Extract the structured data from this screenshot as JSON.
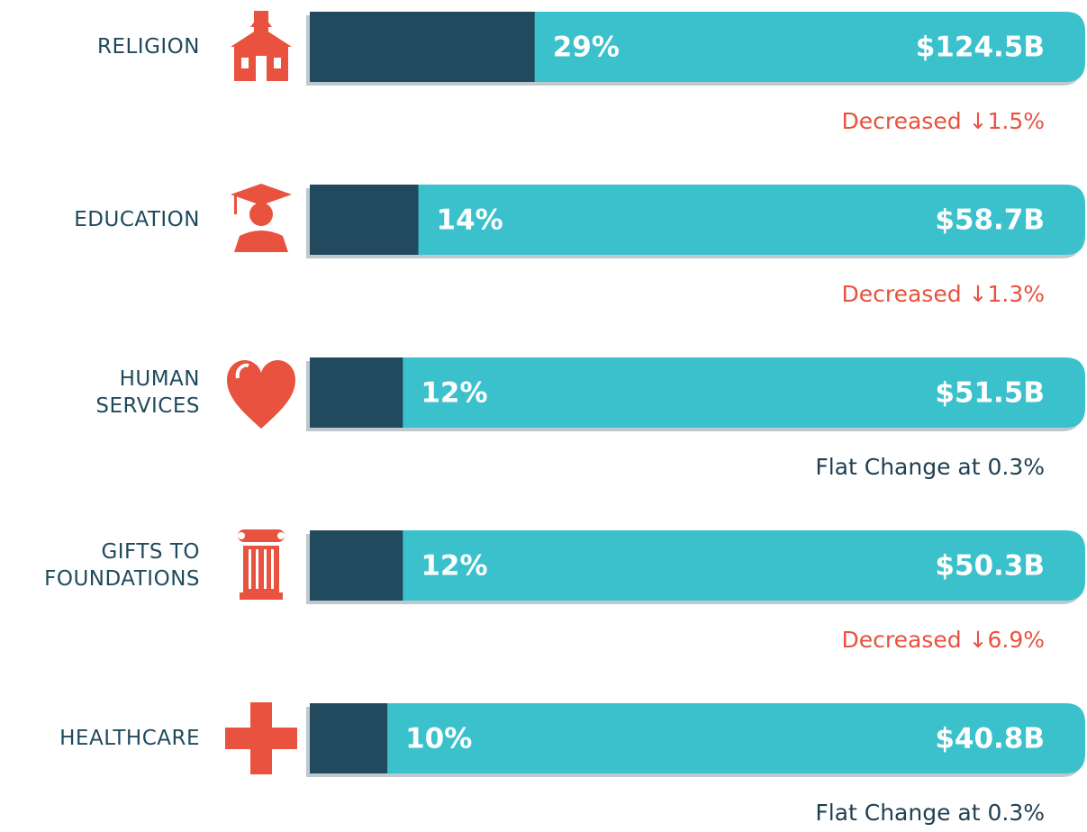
{
  "chart_data": {
    "type": "bar",
    "categories": [
      "RELIGION",
      "EDUCATION",
      "HUMAN SERVICES",
      "GIFTS TO FOUNDATIONS",
      "HEALTHCARE"
    ],
    "values": [
      29,
      14,
      12,
      12,
      10
    ],
    "value_labels": [
      "29%",
      "14%",
      "12%",
      "12%",
      "10%"
    ],
    "amount_labels": [
      "$124.5B",
      "$58.7B",
      "$51.5B",
      "$50.3B",
      "$40.8B"
    ],
    "changes": [
      {
        "text": "Decreased ↓1.5%",
        "color": "#e8523f"
      },
      {
        "text": "Decreased ↓1.3%",
        "color": "#e8523f"
      },
      {
        "text": "Flat Change at 0.3%",
        "color": "#1f3f52"
      },
      {
        "text": "Decreased ↓6.9%",
        "color": "#e8523f"
      },
      {
        "text": "Flat Change at 0.3%",
        "color": "#1f3f52"
      }
    ],
    "xlim": [
      0,
      100
    ],
    "color": "#224a5e",
    "track_color": "#3bc1cc"
  }
}
